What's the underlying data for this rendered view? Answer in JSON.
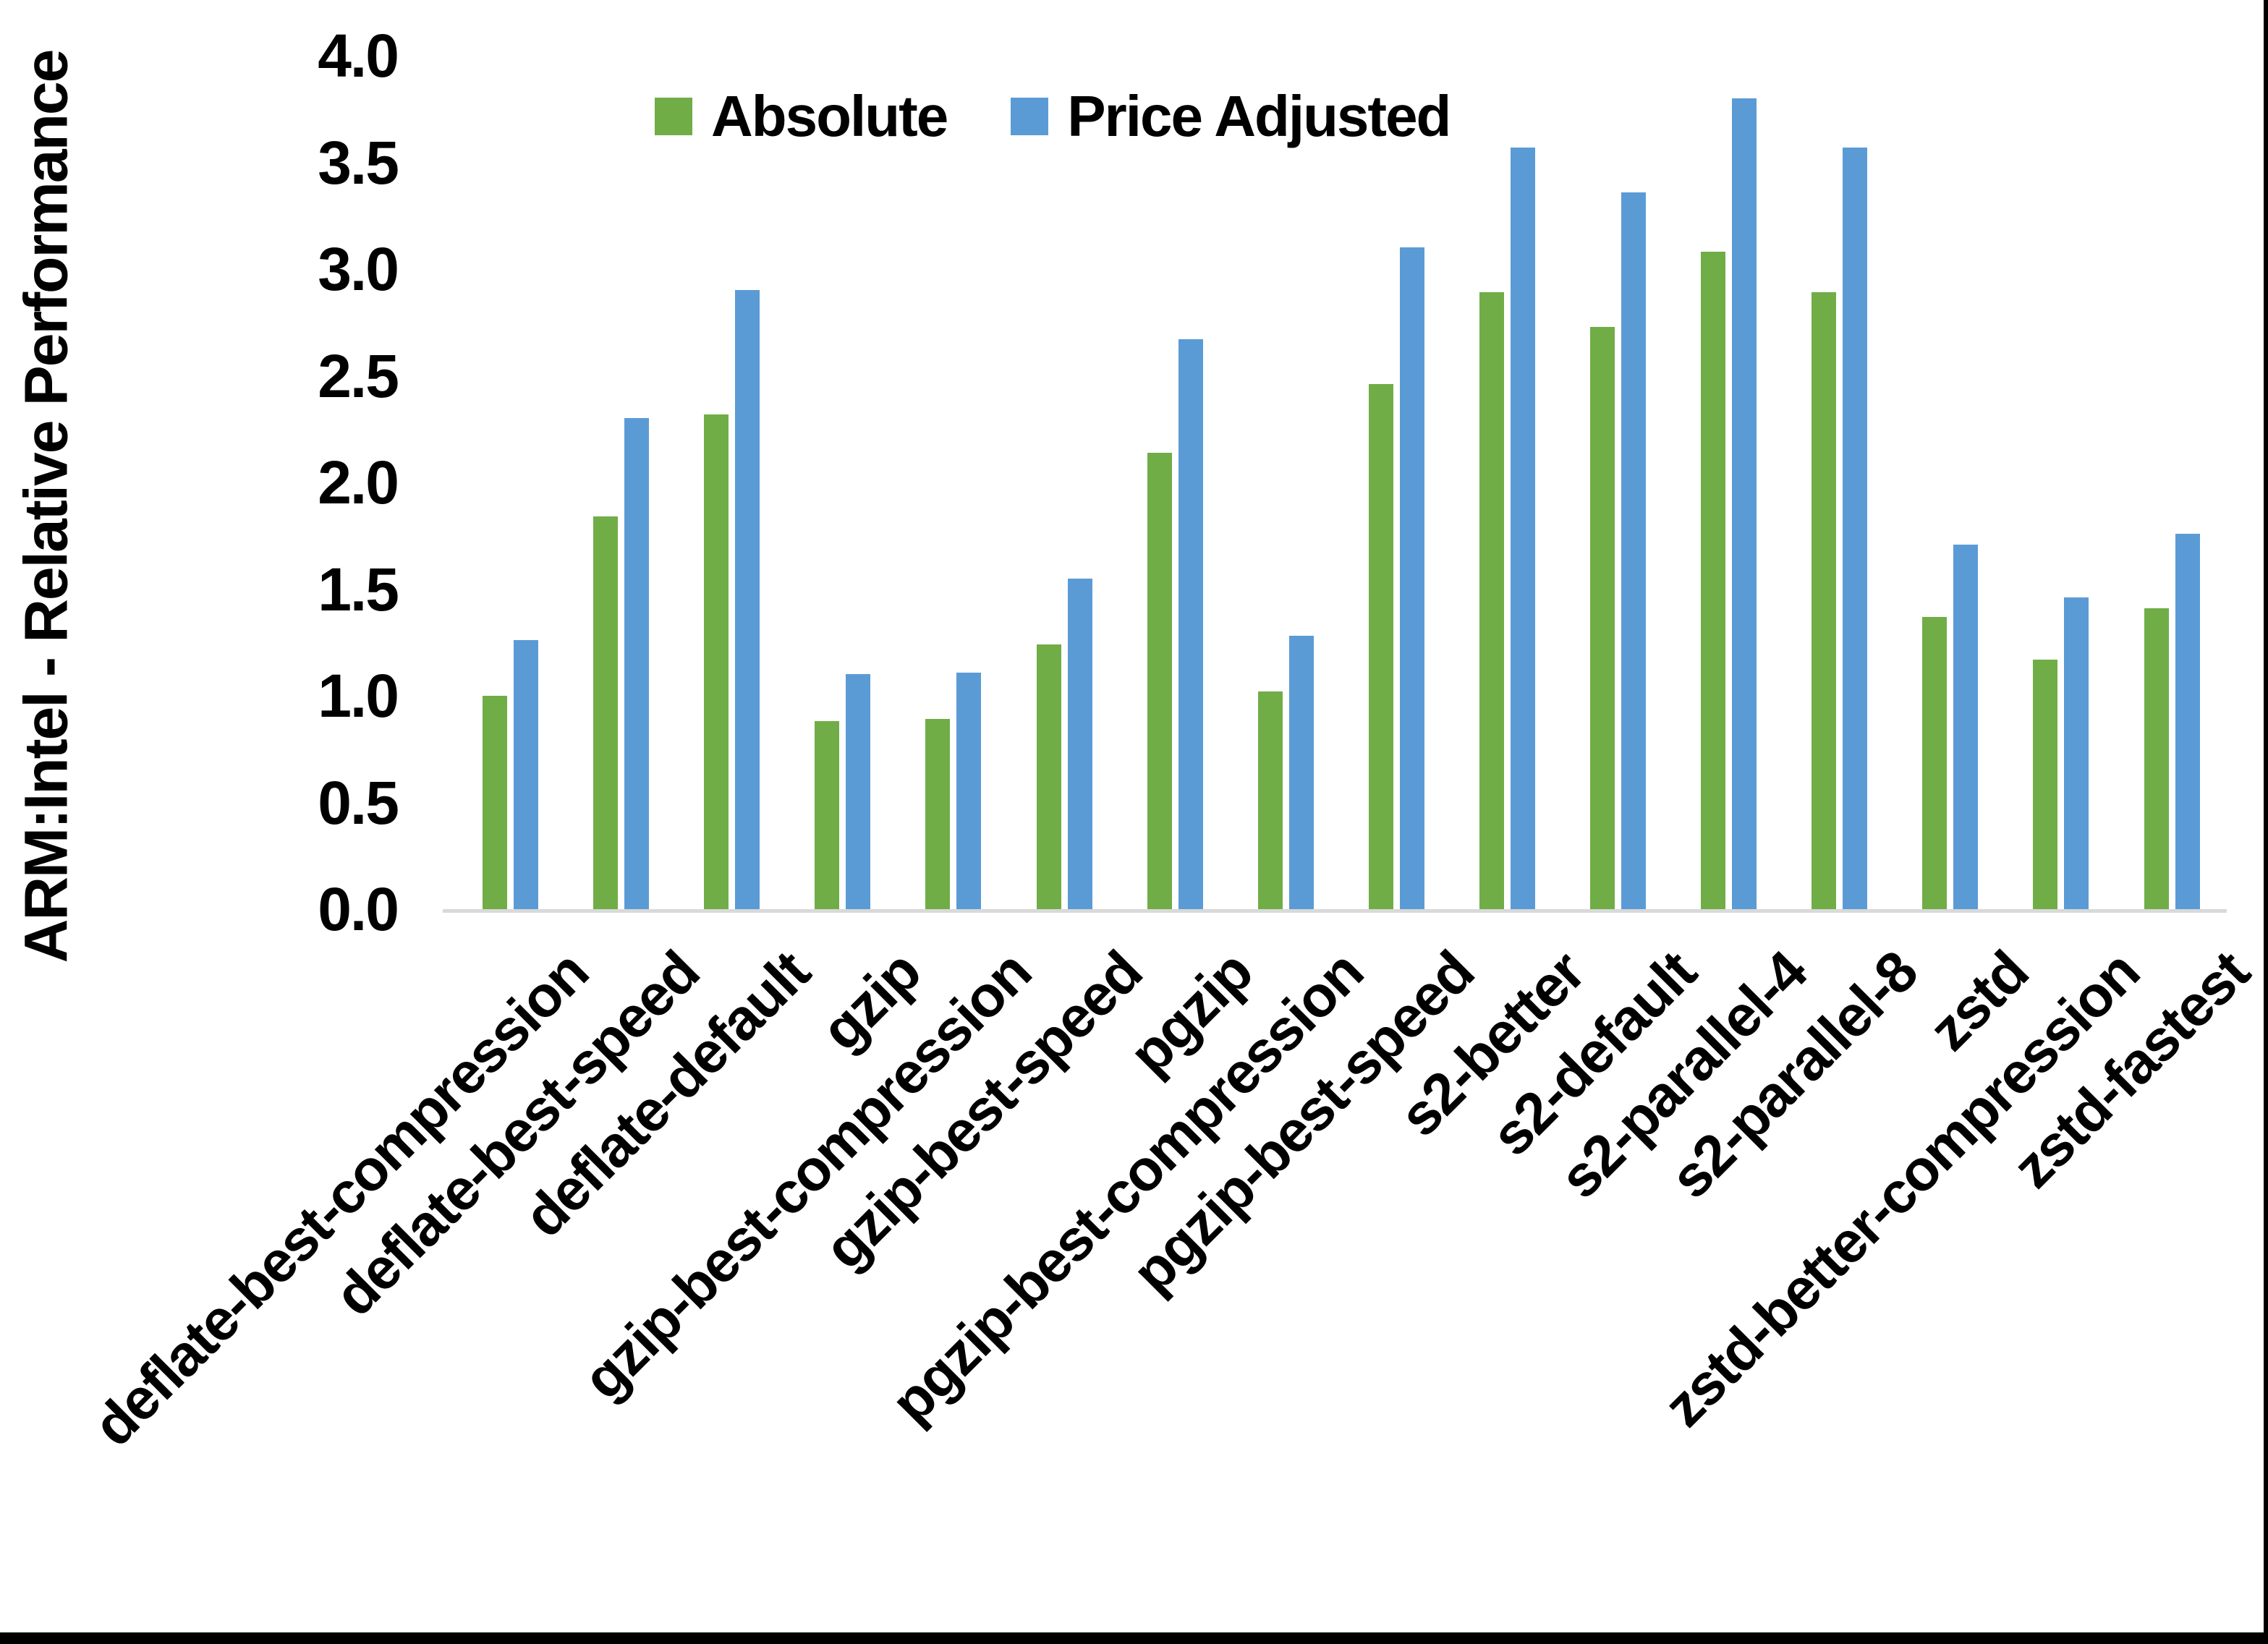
{
  "page": {
    "background": "#FFFFFF",
    "border_color": "#000000"
  },
  "chart_data": {
    "type": "bar",
    "title": "",
    "xlabel": "",
    "ylabel": "ARM:Intel - Relative Performance",
    "ylim": [
      0.0,
      4.0
    ],
    "ytick_labels": [
      "4.0",
      "3.5",
      "3.0",
      "2.5",
      "2.0",
      "1.5",
      "1.0",
      "0.5",
      "0.0"
    ],
    "grid": false,
    "legend_position": "top-center",
    "axis_line_color": "#D9D9D9",
    "text_color": "#000000",
    "categories": [
      "deflate-best-compression",
      "deflate-best-speed",
      "deflate-default",
      "gzip",
      "gzip-best-compression",
      "gzip-best-speed",
      "pgzip",
      "pgzip-best-compression",
      "pgzip-best-speed",
      "s2-better",
      "s2-default",
      "s2-parallel-4",
      "s2-parallel-8",
      "zstd",
      "zstd-better-compression",
      "zstd-fastest"
    ],
    "series": [
      {
        "name": "Absolute",
        "color": "#70AD47",
        "values": [
          1.0,
          1.84,
          2.32,
          0.88,
          0.89,
          1.24,
          2.14,
          1.02,
          2.46,
          2.89,
          2.73,
          3.08,
          2.89,
          1.37,
          1.17,
          1.41
        ]
      },
      {
        "name": "Price Adjusted",
        "color": "#5B9BD5",
        "values": [
          1.26,
          2.3,
          2.9,
          1.1,
          1.11,
          1.55,
          2.67,
          1.28,
          3.1,
          3.57,
          3.36,
          3.8,
          3.57,
          1.71,
          1.46,
          1.76
        ]
      }
    ]
  }
}
